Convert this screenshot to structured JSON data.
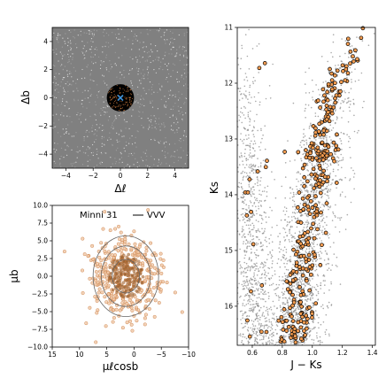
{
  "chart_data": [
    {
      "panel": "top-left",
      "type": "scatter",
      "xlabel": "Δℓ",
      "ylabel": "Δb",
      "xlim": [
        -5,
        5
      ],
      "ylim": [
        -5,
        5
      ],
      "xticks": [
        "−4",
        "−2",
        "0",
        "2",
        "4"
      ],
      "yticks": [
        "−4",
        "−2",
        "0",
        "2",
        "4"
      ],
      "xtick_values": [
        -4,
        -2,
        0,
        2,
        4
      ],
      "ytick_values": [
        -4,
        -2,
        0,
        2,
        4
      ],
      "background_points_color": "#808080",
      "cluster_region_radius": 1.0,
      "cluster_region_color": "#000000",
      "member_color": "#c8783c",
      "center": {
        "x": 0,
        "y": 0,
        "marker": "x",
        "color": "#3a8fd8"
      }
    },
    {
      "panel": "bottom-left",
      "type": "scatter",
      "xlabel": "μℓcosb",
      "ylabel": "μb",
      "xlim": [
        15,
        -10
      ],
      "ylim": [
        -10,
        10
      ],
      "xticks": [
        "15",
        "10",
        "5",
        "0",
        "−5",
        "−10"
      ],
      "xtick_values": [
        15,
        10,
        5,
        0,
        -5,
        -10
      ],
      "yticks": [
        "−10.0",
        "−7.5",
        "−5.0",
        "−2.5",
        "0.0",
        "2.5",
        "5.0",
        "7.5",
        "10.0"
      ],
      "ytick_values": [
        -10,
        -7.5,
        -5,
        -2.5,
        0,
        2.5,
        5,
        7.5,
        10
      ],
      "legend": {
        "cluster": "Minni 31",
        "survey": "VVV",
        "position": "top"
      },
      "pm_center": {
        "x": 1.5,
        "y": 0.0
      },
      "contour_radii": [
        2.5,
        4.5,
        6.0
      ],
      "member_face_color": "#f0c8a8",
      "member_edge_color": "#c8783c",
      "dense_color": "#8b5a2b"
    },
    {
      "panel": "right",
      "type": "scatter",
      "xlabel": "J − Ks",
      "ylabel": "Ks",
      "xlim": [
        0.5,
        1.42
      ],
      "ylim": [
        16.7,
        11.0
      ],
      "xticks": [
        "0.6",
        "0.8",
        "1.0",
        "1.2",
        "1.4"
      ],
      "xtick_values": [
        0.6,
        0.8,
        1.0,
        1.2,
        1.4
      ],
      "yticks": [
        "11",
        "12",
        "13",
        "14",
        "15",
        "16"
      ],
      "ytick_values": [
        11,
        12,
        13,
        14,
        15,
        16
      ],
      "field_color": "#8c8c8c",
      "member_face_color": "#f39c50",
      "member_edge_color": "#000000",
      "rgb_sequence": [
        {
          "x": 0.88,
          "y": 16.6
        },
        {
          "x": 0.9,
          "y": 16.0
        },
        {
          "x": 0.92,
          "y": 15.5
        },
        {
          "x": 0.95,
          "y": 15.0
        },
        {
          "x": 0.98,
          "y": 14.5
        },
        {
          "x": 1.01,
          "y": 14.0
        },
        {
          "x": 1.04,
          "y": 13.5
        },
        {
          "x": 1.07,
          "y": 13.0
        },
        {
          "x": 1.11,
          "y": 12.5
        },
        {
          "x": 1.16,
          "y": 12.0
        },
        {
          "x": 1.22,
          "y": 11.5
        },
        {
          "x": 1.3,
          "y": 11.1
        }
      ],
      "red_clump": {
        "x": 1.0,
        "y": 13.3
      }
    }
  ]
}
